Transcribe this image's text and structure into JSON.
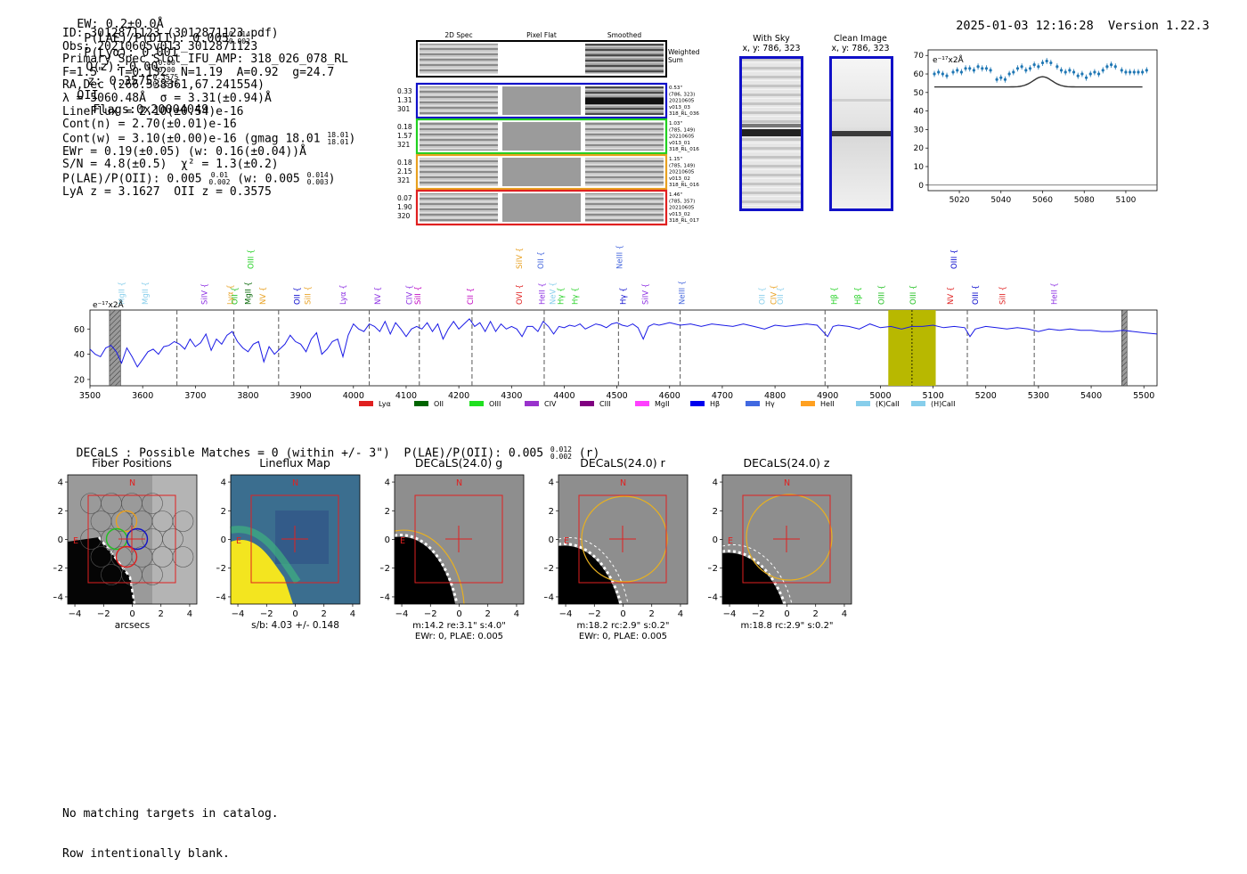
{
  "header": {
    "ew": "EW: 0.2±0.0Å",
    "plae_label": "P(LAE)/P(OII): 0.005",
    "plae_sup": "0.014",
    "plae_sub": "0.002",
    "plya": "P(Lyα): 0.001",
    "qz_label": "Q(z): 0.00",
    "qz_sup": "0.00",
    "qz_sub": "0.00",
    "z_label": "z: 0.3575",
    "z_sup": "0.3575",
    "z_sub": "0.3575",
    "z_line": "OII",
    "flags": "Flags:0x20004049",
    "datetime": "2025-01-03 12:16:28",
    "version": "Version 1.22.3"
  },
  "info": {
    "id": "ID: 3012871123 (3012871123.pdf)",
    "obs": "Obs: 20210605v013_3012871123",
    "primary": "Primary Spec_Slot_IFU_AMP: 318_026_078_RL",
    "fibers": "F=1.5\"  T=0.132  N=1.19  A=0.92  g=24.7",
    "radec": "RA,Dec (266.538361,67.241554)",
    "lambda": "λ = 5060.48Å  σ = 3.31(±0.94)Å",
    "lineflux": "LineFlux = 2.10(±0.54)e-16",
    "contn": "Cont(n) = 2.70(±0.01)e-16",
    "contw": "Cont(w) = 3.10(±0.00)e-16 (gmag 18.01",
    "contw_sup": "18.01",
    "contw_sub": "18.01",
    "ewr": "EWr = 0.19(±0.05) (w: 0.16(±0.04))Å",
    "sn": "S/N = 4.8(±0.5)  χ² = 1.3(±0.2)",
    "plae": "P(LAE)/P(OII): 0.005",
    "plae_sup": "0.01",
    "plae_sub": "0.002",
    "plae_w": "(w: 0.005",
    "plae_w_sup": "0.014",
    "plae_w_sub": "0.003",
    "lya": "LyA z = 3.1627  OII z = 0.3575"
  },
  "spec2d": {
    "col_titles": [
      "2D Spec",
      "Pixel Flat",
      "Smoothed"
    ],
    "weighted": "Weighted",
    "sum": "Sum",
    "rows": [
      {
        "left": [
          "0.33",
          "1.31",
          "301"
        ],
        "right": [
          "0.53\"",
          "(786, 323)",
          "20210605",
          "v013_03",
          "318_RL_036"
        ],
        "color": "#1010c8"
      },
      {
        "left": [
          "0.18",
          "1.57",
          "321"
        ],
        "right": [
          "1.03\"",
          "(785, 149)",
          "20210605",
          "v013_01",
          "318_RL_016"
        ],
        "color": "#20d020"
      },
      {
        "left": [
          "0.18",
          "2.15",
          "321"
        ],
        "right": [
          "1.15\"",
          "(785, 149)",
          "20210605",
          "v013_02",
          "318_RL_016"
        ],
        "color": "#e8a020"
      },
      {
        "left": [
          "0.07",
          "1.90",
          "320"
        ],
        "right": [
          "1.46\"",
          "(785, 357)",
          "20210605",
          "v013_02",
          "318_RL_017"
        ],
        "color": "#e02020"
      }
    ]
  },
  "cutouts": {
    "with_sky_title": "With Sky",
    "with_sky_xy": "x, y: 786, 323",
    "clean_title": "Clean Image",
    "clean_xy": "x, y: 786, 323"
  },
  "zoom_chart": {
    "ylabel": "e⁻¹⁷x2Å",
    "xticks": [
      "5020",
      "5040",
      "5060",
      "5080",
      "5100"
    ],
    "yticks": [
      "0",
      "10",
      "20",
      "30",
      "40",
      "50",
      "60",
      "70"
    ]
  },
  "chart_data": [
    {
      "type": "scatter",
      "title": "Zoom spectrum around 5060 Å",
      "ylabel": "e⁻¹⁷x2Å",
      "xlim": [
        5005,
        5115
      ],
      "ylim": [
        -3,
        73
      ],
      "x": [
        5008,
        5010,
        5012,
        5014,
        5017,
        5019,
        5021,
        5023,
        5025,
        5027,
        5029,
        5031,
        5033,
        5035,
        5038,
        5040,
        5042,
        5044,
        5046,
        5048,
        5050,
        5052,
        5054,
        5056,
        5058,
        5060,
        5062,
        5064,
        5067,
        5069,
        5071,
        5073,
        5075,
        5077,
        5079,
        5081,
        5083,
        5085,
        5087,
        5089,
        5091,
        5093,
        5095,
        5098,
        5100,
        5102,
        5104,
        5106,
        5108,
        5110
      ],
      "y": [
        60,
        61,
        60,
        59,
        61,
        62,
        61,
        63,
        63,
        62,
        64,
        63,
        63,
        62,
        57,
        58,
        57,
        60,
        61,
        63,
        64,
        62,
        63,
        65,
        64,
        66,
        67,
        66,
        64,
        62,
        61,
        62,
        61,
        59,
        60,
        58,
        60,
        61,
        60,
        62,
        64,
        65,
        64,
        62,
        61,
        61,
        61,
        61,
        61,
        62
      ],
      "model_baseline": 53,
      "model_peak_x": 5060,
      "model_peak_y": 58.5
    },
    {
      "type": "line",
      "title": "Full spectrum",
      "ylabel": "e⁻¹⁷x2Å",
      "xlim": [
        3500,
        5525
      ],
      "ylim": [
        15,
        75
      ],
      "xticks": [
        3500,
        3600,
        3700,
        3800,
        3900,
        4000,
        4100,
        4200,
        4300,
        4400,
        4500,
        4600,
        4700,
        4800,
        4900,
        5000,
        5100,
        5200,
        5300,
        5400,
        5500
      ],
      "yticks": [
        20,
        40,
        60
      ],
      "highlight_range": [
        5015,
        5105
      ],
      "central_wave": 5060,
      "masked_ranges": [
        [
          3537,
          3558
        ],
        [
          5458,
          5468
        ]
      ],
      "dashed_lines": [
        3665,
        3773,
        3858,
        4030,
        4125,
        4225,
        4362,
        4503,
        4620,
        4895,
        5165,
        5292
      ],
      "lines": [
        {
          "name": "MgII",
          "x": 3560,
          "color": "#87ceeb",
          "row": 1
        },
        {
          "name": "MgII",
          "x": 3605,
          "color": "#87ceeb",
          "row": 1
        },
        {
          "name": "SiIV",
          "x": 3717,
          "color": "#8a2be2",
          "row": 1
        },
        {
          "name": "Lyα",
          "x": 3766,
          "color": "#e8a020",
          "row": 1
        },
        {
          "name": "OII",
          "x": 3775,
          "color": "#20c020",
          "row": 1
        },
        {
          "name": "MgII",
          "x": 3800,
          "color": "#006400",
          "row": 1
        },
        {
          "name": "OIII",
          "x": 3805,
          "color": "#20d020",
          "row": 0
        },
        {
          "name": "NV",
          "x": 3828,
          "color": "#e8a020",
          "row": 1
        },
        {
          "name": "OII",
          "x": 3893,
          "color": "#0000cc",
          "row": 1
        },
        {
          "name": "SiII",
          "x": 3913,
          "color": "#e8a020",
          "row": 1
        },
        {
          "name": "Lyα",
          "x": 3980,
          "color": "#8a2be2",
          "row": 1
        },
        {
          "name": "NV",
          "x": 4046,
          "color": "#8a2be2",
          "row": 1
        },
        {
          "name": "CIV",
          "x": 4106,
          "color": "#8a2be2",
          "row": 1
        },
        {
          "name": "SiII",
          "x": 4122,
          "color": "#c000c0",
          "row": 1
        },
        {
          "name": "CII",
          "x": 4222,
          "color": "#c000c0",
          "row": 1
        },
        {
          "name": "SiIV",
          "x": 4315,
          "color": "#e8a020",
          "row": 0
        },
        {
          "name": "OII",
          "x": 4355,
          "color": "#4466dd",
          "row": 0
        },
        {
          "name": "OVI",
          "x": 4315,
          "color": "#e02020",
          "row": 1
        },
        {
          "name": "HeII",
          "x": 4358,
          "color": "#8a2be2",
          "row": 1
        },
        {
          "name": "NeV",
          "x": 4378,
          "color": "#87ceeb",
          "row": 1
        },
        {
          "name": "Hγ",
          "x": 4393,
          "color": "#20d020",
          "row": 1
        },
        {
          "name": "Hγ",
          "x": 4420,
          "color": "#20d020",
          "row": 1
        },
        {
          "name": "NeIII",
          "x": 4505,
          "color": "#4466dd",
          "row": 0
        },
        {
          "name": "Hγ",
          "x": 4512,
          "color": "#0000cc",
          "row": 1
        },
        {
          "name": "SiIV",
          "x": 4554,
          "color": "#8a2be2",
          "row": 1
        },
        {
          "name": "NeIII",
          "x": 4623,
          "color": "#4466dd",
          "row": 1
        },
        {
          "name": "OII",
          "x": 4775,
          "color": "#87ceeb",
          "row": 1
        },
        {
          "name": "CIV",
          "x": 4797,
          "color": "#e8a020",
          "row": 1
        },
        {
          "name": "OII",
          "x": 4810,
          "color": "#87ceeb",
          "row": 1
        },
        {
          "name": "Hβ",
          "x": 4912,
          "color": "#20d020",
          "row": 1
        },
        {
          "name": "Hβ",
          "x": 4957,
          "color": "#20d020",
          "row": 1
        },
        {
          "name": "OIII",
          "x": 5002,
          "color": "#20c020",
          "row": 1
        },
        {
          "name": "OIII",
          "x": 5062,
          "color": "#20c020",
          "row": 1
        },
        {
          "name": "OIII",
          "x": 5140,
          "color": "#0000cc",
          "row": 0
        },
        {
          "name": "NV",
          "x": 5133,
          "color": "#e02020",
          "row": 1
        },
        {
          "name": "OIII",
          "x": 5180,
          "color": "#0000cc",
          "row": 1
        },
        {
          "name": "SiII",
          "x": 5232,
          "color": "#e02020",
          "row": 1
        },
        {
          "name": "HeII",
          "x": 5330,
          "color": "#8a2be2",
          "row": 1
        }
      ],
      "legend": [
        {
          "name": "Lyα",
          "color": "#e02020"
        },
        {
          "name": "OII",
          "color": "#006400"
        },
        {
          "name": "OIII",
          "color": "#20e020"
        },
        {
          "name": "CIV",
          "color": "#9932cc"
        },
        {
          "name": "CIII",
          "color": "#800080"
        },
        {
          "name": "MgII",
          "color": "#ff40ff"
        },
        {
          "name": "Hβ",
          "color": "#0000ee"
        },
        {
          "name": "Hγ",
          "color": "#4169e1"
        },
        {
          "name": "HeII",
          "color": "#ffa020"
        },
        {
          "name": "(K)CaII",
          "color": "#87ceeb"
        },
        {
          "name": "(H)CaII",
          "color": "#87ceeb"
        }
      ],
      "x": [
        3500,
        3510,
        3520,
        3530,
        3540,
        3550,
        3560,
        3570,
        3580,
        3590,
        3600,
        3610,
        3620,
        3630,
        3640,
        3650,
        3660,
        3670,
        3680,
        3690,
        3700,
        3710,
        3720,
        3730,
        3740,
        3750,
        3760,
        3770,
        3780,
        3790,
        3800,
        3810,
        3820,
        3830,
        3840,
        3850,
        3860,
        3870,
        3880,
        3890,
        3900,
        3910,
        3920,
        3930,
        3940,
        3950,
        3960,
        3970,
        3980,
        3990,
        4000,
        4010,
        4020,
        4030,
        4040,
        4050,
        4060,
        4070,
        4080,
        4090,
        4100,
        4110,
        4120,
        4130,
        4140,
        4150,
        4160,
        4170,
        4180,
        4190,
        4200,
        4210,
        4220,
        4230,
        4240,
        4250,
        4260,
        4270,
        4280,
        4290,
        4300,
        4310,
        4320,
        4330,
        4340,
        4350,
        4360,
        4370,
        4380,
        4390,
        4400,
        4410,
        4420,
        4430,
        4440,
        4450,
        4460,
        4470,
        4480,
        4490,
        4500,
        4510,
        4520,
        4530,
        4540,
        4550,
        4560,
        4570,
        4580,
        4590,
        4600,
        4620,
        4640,
        4660,
        4680,
        4700,
        4720,
        4740,
        4760,
        4780,
        4800,
        4820,
        4840,
        4860,
        4880,
        4900,
        4910,
        4920,
        4940,
        4960,
        4980,
        5000,
        5020,
        5040,
        5060,
        5080,
        5100,
        5120,
        5140,
        5160,
        5170,
        5180,
        5200,
        5220,
        5240,
        5260,
        5280,
        5300,
        5320,
        5340,
        5360,
        5380,
        5400,
        5420,
        5440,
        5460,
        5480,
        5500,
        5525
      ],
      "y": [
        44,
        40,
        38,
        45,
        47,
        42,
        33,
        45,
        38,
        30,
        36,
        42,
        44,
        40,
        46,
        47,
        50,
        48,
        44,
        52,
        46,
        49,
        56,
        43,
        52,
        48,
        55,
        58,
        50,
        45,
        42,
        48,
        50,
        34,
        46,
        40,
        44,
        48,
        55,
        50,
        48,
        42,
        52,
        57,
        40,
        44,
        50,
        52,
        38,
        55,
        64,
        60,
        58,
        64,
        62,
        58,
        66,
        56,
        65,
        60,
        54,
        60,
        62,
        60,
        65,
        58,
        64,
        52,
        60,
        66,
        60,
        64,
        68,
        62,
        65,
        58,
        66,
        58,
        64,
        60,
        62,
        60,
        54,
        62,
        62,
        58,
        66,
        62,
        56,
        62,
        61,
        63,
        62,
        64,
        60,
        62,
        64,
        63,
        61,
        64,
        65,
        63,
        62,
        64,
        61,
        52,
        62,
        64,
        63,
        64,
        65,
        63,
        64,
        62,
        64,
        63,
        62,
        64,
        62,
        60,
        63,
        62,
        63,
        64,
        63,
        54,
        62,
        63,
        62,
        60,
        64,
        61,
        62,
        60,
        62,
        62,
        63,
        61,
        62,
        61,
        54,
        60,
        62,
        61,
        60,
        61,
        60,
        58,
        60,
        59,
        60,
        59,
        59,
        58,
        58,
        59,
        58,
        57,
        56
      ]
    }
  ],
  "decals_text": {
    "label": "DECaLS : Possible Matches = 0 (within +/- 3\")  P(LAE)/P(OII): 0.005",
    "sup": "0.012",
    "sub": "0.002",
    "tail": "(r)"
  },
  "stamps": [
    {
      "title": "Fiber Positions",
      "xlabel": "arcsecs",
      "caption": [],
      "compass_n": "N",
      "compass_e": "E"
    },
    {
      "title": "Lineflux Map",
      "xlabel": "s/b: 4.03 +/- 0.148",
      "caption": [],
      "compass_n": "N",
      "compass_e": "E"
    },
    {
      "title": "DECaLS(24.0) g",
      "xlabel": "",
      "caption": [
        "m:14.2  re:3.1\"  s:4.0\"",
        "EWr: 0, PLAE: 0.005"
      ],
      "compass_n": "N",
      "compass_e": "E"
    },
    {
      "title": "DECaLS(24.0) r",
      "xlabel": "",
      "caption": [
        "m:18.2 rc:2.9\"  s:0.2\"",
        "EWr: 0, PLAE: 0.005"
      ],
      "compass_n": "N",
      "compass_e": "E"
    },
    {
      "title": "DECaLS(24.0) z",
      "xlabel": "",
      "caption": [
        "m:18.8 rc:2.9\"  s:0.2\""
      ],
      "compass_n": "N",
      "compass_e": "E"
    }
  ],
  "stamp_axis": {
    "xticks": [
      "−4",
      "−2",
      "0",
      "2",
      "4"
    ],
    "yticks": [
      "4",
      "2",
      "0",
      "−2",
      "−4"
    ]
  },
  "footer": {
    "line1": "No matching targets in catalog.",
    "line2": "Row intentionally blank."
  },
  "colors": {
    "spectrum": "#1a1ae6",
    "highlight": "#b8b800",
    "zoom_points": "#1f77b4"
  }
}
